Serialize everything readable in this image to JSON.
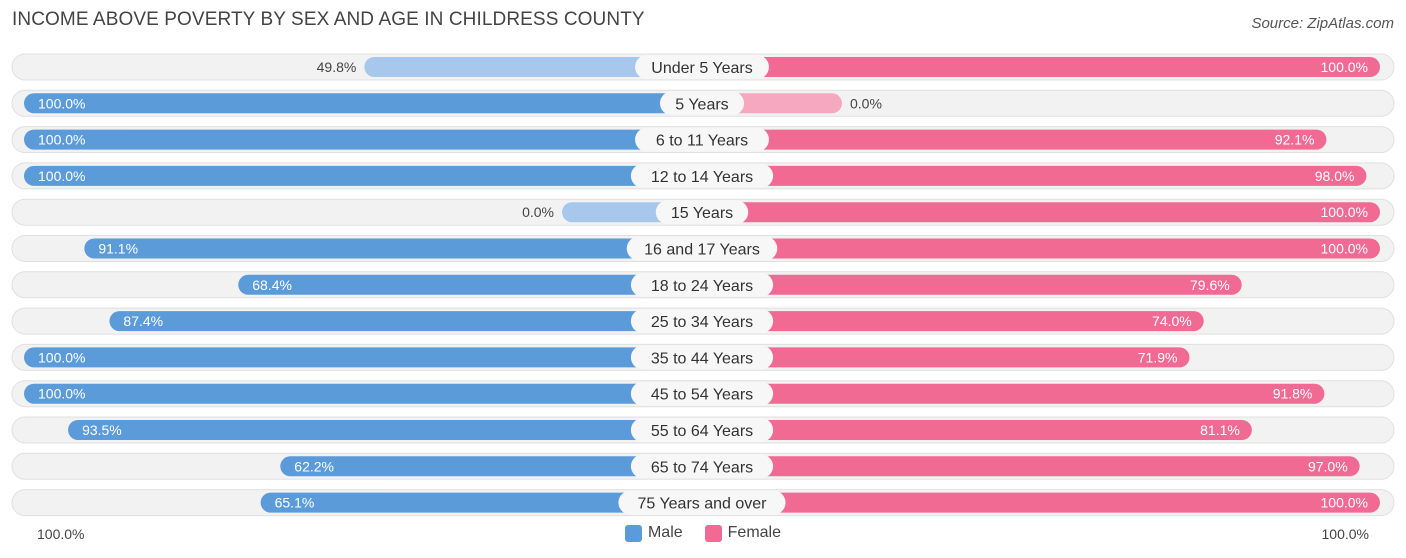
{
  "title": "INCOME ABOVE POVERTY BY SEX AND AGE IN CHILDRESS COUNTY",
  "source": "Source: ZipAtlas.com",
  "colors": {
    "male": "#5b9bd9",
    "male_light": "#a7c8ec",
    "female": "#f06a93",
    "female_light": "#f6a8c0"
  },
  "legend": {
    "male": "Male",
    "female": "Female"
  },
  "axis": {
    "left": "100.0%",
    "right": "100.0%"
  },
  "chart_data": {
    "type": "bar",
    "orientation": "horizontal-diverging",
    "title": "INCOME ABOVE POVERTY BY SEX AND AGE IN CHILDRESS COUNTY",
    "categories": [
      "Under 5 Years",
      "5 Years",
      "6 to 11 Years",
      "12 to 14 Years",
      "15 Years",
      "16 and 17 Years",
      "18 to 24 Years",
      "25 to 34 Years",
      "35 to 44 Years",
      "45 to 54 Years",
      "55 to 64 Years",
      "65 to 74 Years",
      "75 Years and over"
    ],
    "series": [
      {
        "name": "Male",
        "values": [
          49.8,
          100.0,
          100.0,
          100.0,
          0.0,
          91.1,
          68.4,
          87.4,
          100.0,
          100.0,
          93.5,
          62.2,
          65.1
        ],
        "labels": [
          "49.8%",
          "100.0%",
          "100.0%",
          "100.0%",
          "0.0%",
          "91.1%",
          "68.4%",
          "87.4%",
          "100.0%",
          "100.0%",
          "93.5%",
          "62.2%",
          "65.1%"
        ]
      },
      {
        "name": "Female",
        "values": [
          100.0,
          0.0,
          92.1,
          98.0,
          100.0,
          100.0,
          79.6,
          74.0,
          71.9,
          91.8,
          81.1,
          97.0,
          100.0
        ],
        "labels": [
          "100.0%",
          "0.0%",
          "92.1%",
          "98.0%",
          "100.0%",
          "100.0%",
          "79.6%",
          "74.0%",
          "71.9%",
          "91.8%",
          "81.1%",
          "97.0%",
          "100.0%"
        ]
      }
    ],
    "xlim": [
      0,
      100
    ],
    "legend_position": "bottom-center"
  }
}
